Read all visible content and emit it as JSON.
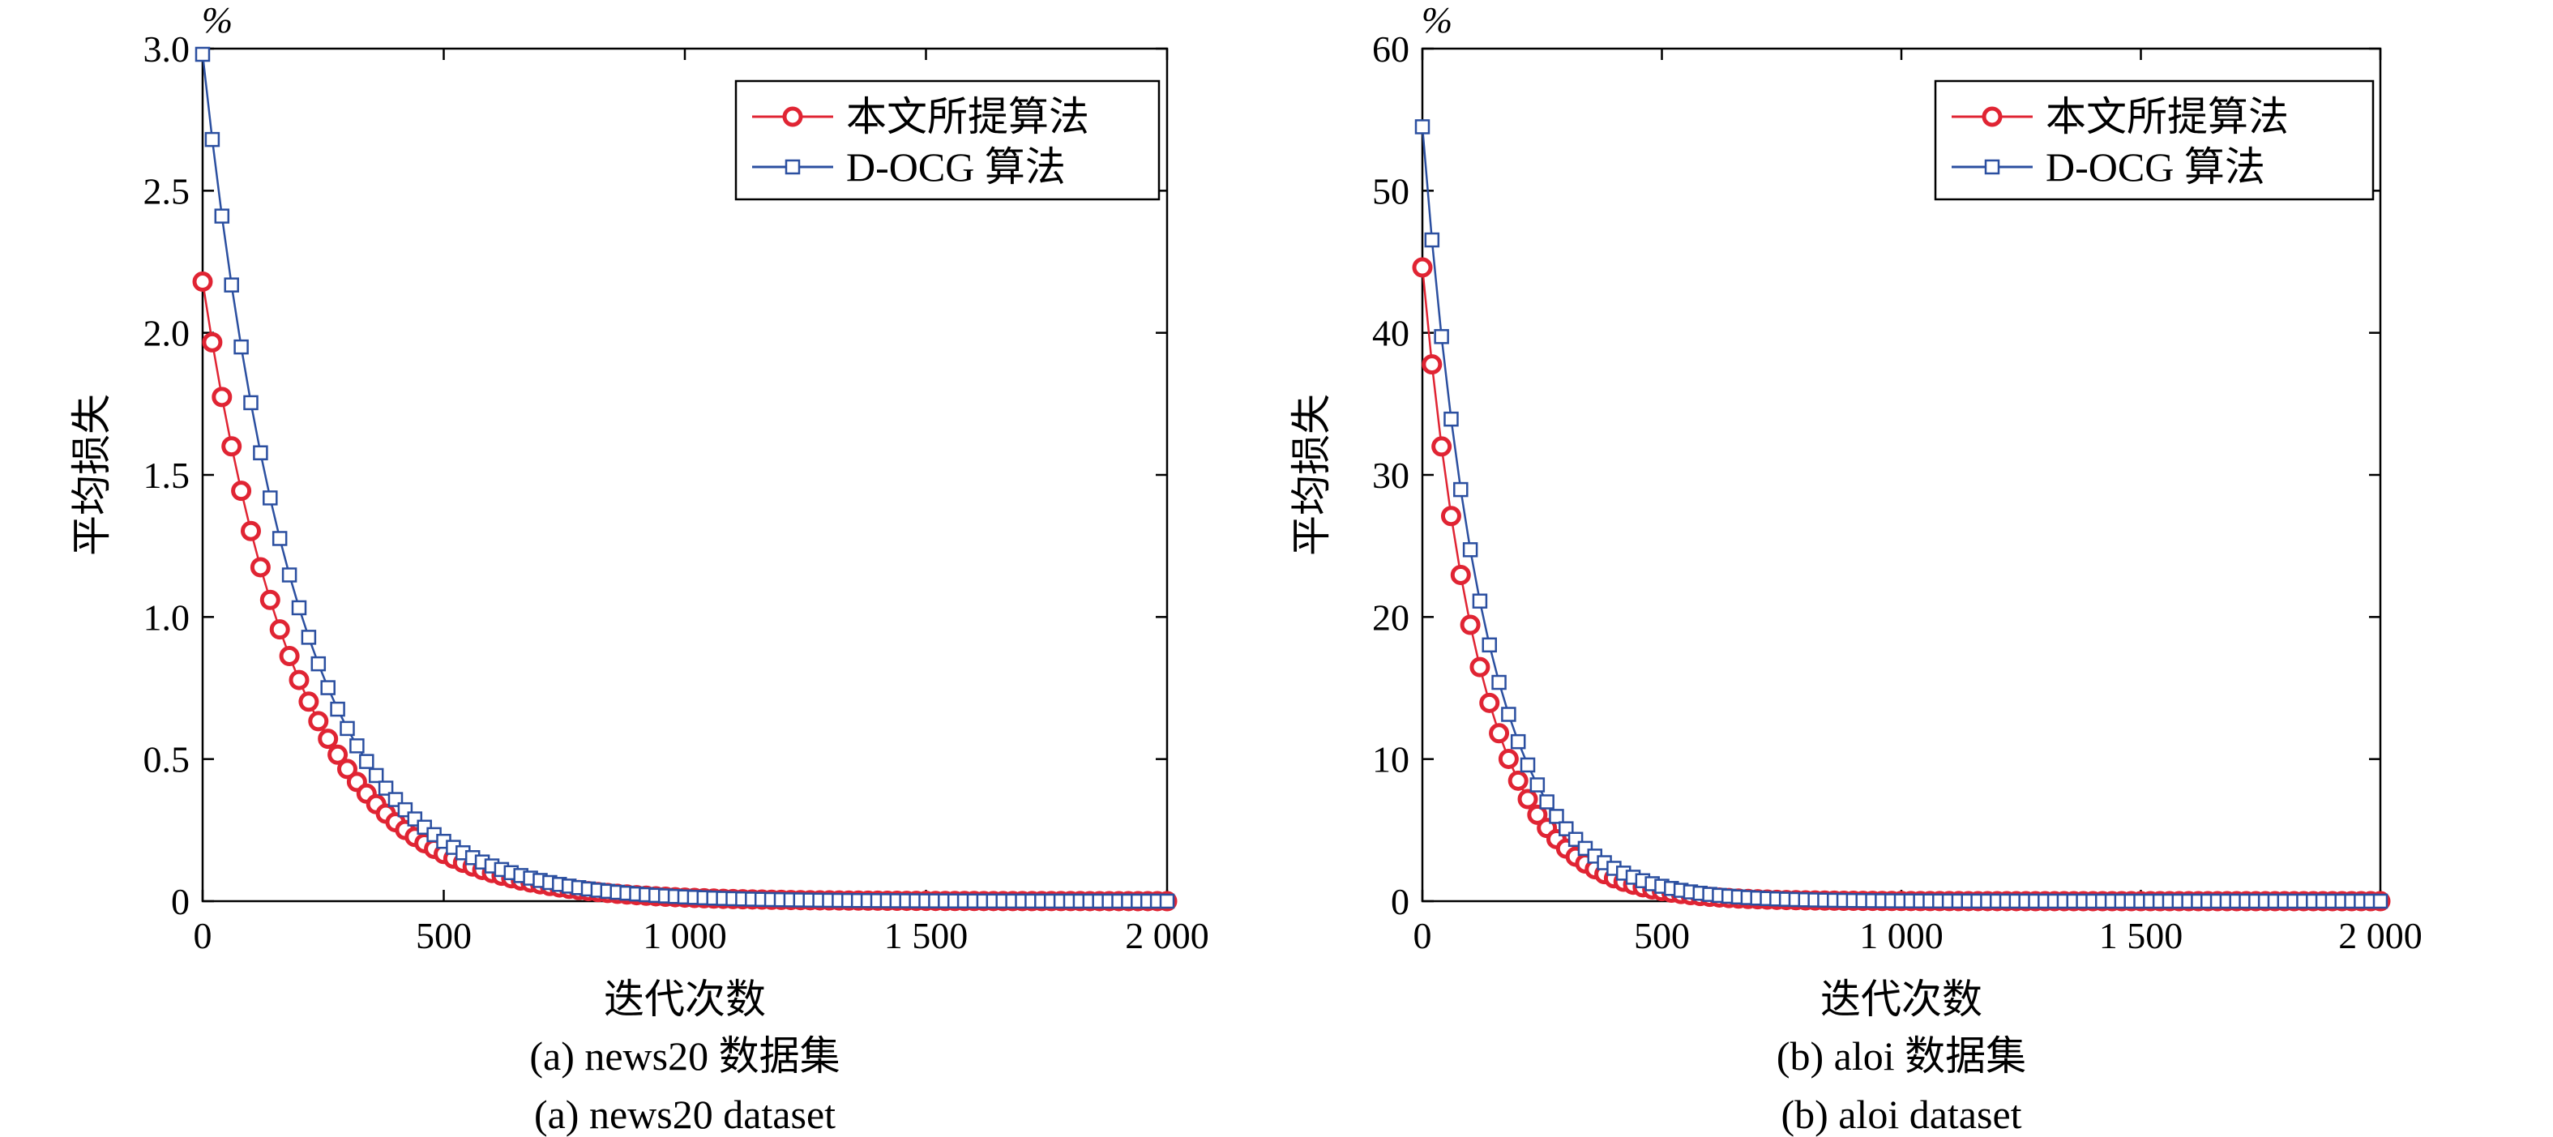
{
  "figure": {
    "chart_data": [
      {
        "type": "scatter",
        "panel_caption_zh": "(a) news20 数据集",
        "panel_caption_en": "(a) news20 dataset",
        "xlabel": "迭代次数",
        "ylabel": "平均损失",
        "yunit": "%",
        "xlim": [
          0,
          2000
        ],
        "ylim": [
          0,
          3.0
        ],
        "xticks": [
          0,
          500,
          1000,
          1500,
          2000
        ],
        "xtick_labels": [
          "0",
          "500",
          "1 000",
          "1 500",
          "2 000"
        ],
        "yticks": [
          0,
          0.5,
          1.0,
          1.5,
          2.0,
          2.5,
          3.0
        ],
        "ytick_labels": [
          "0",
          "0.5",
          "1.0",
          "1.5",
          "2.0",
          "2.5",
          "3.0"
        ],
        "legend_position": "top-right",
        "grid": false,
        "series": [
          {
            "name": "本文所提算法",
            "marker": "circle",
            "color": "#e02433",
            "y0": 2.18,
            "decay": 0.00515,
            "x_step": 20
          },
          {
            "name": "D-OCG 算法",
            "marker": "square",
            "color": "#2b4fa0",
            "y0": 2.98,
            "decay": 0.0053,
            "x_step": 20
          }
        ]
      },
      {
        "type": "scatter",
        "panel_caption_zh": "(b) aloi 数据集",
        "panel_caption_en": "(b) aloi dataset",
        "xlabel": "迭代次数",
        "ylabel": "平均损失",
        "yunit": "%",
        "xlim": [
          0,
          2000
        ],
        "ylim": [
          0,
          60
        ],
        "xticks": [
          0,
          500,
          1000,
          1500,
          2000
        ],
        "xtick_labels": [
          "0",
          "500",
          "1 000",
          "1 500",
          "2 000"
        ],
        "yticks": [
          0,
          10,
          20,
          30,
          40,
          50,
          60
        ],
        "ytick_labels": [
          "0",
          "10",
          "20",
          "30",
          "40",
          "50",
          "60"
        ],
        "legend_position": "top-right",
        "grid": false,
        "series": [
          {
            "name": "本文所提算法",
            "marker": "circle",
            "color": "#e02433",
            "y0": 44.6,
            "decay": 0.0083,
            "x_step": 20
          },
          {
            "name": "D-OCG 算法",
            "marker": "square",
            "color": "#2b4fa0",
            "y0": 54.5,
            "decay": 0.0079,
            "x_step": 20
          }
        ]
      }
    ]
  }
}
